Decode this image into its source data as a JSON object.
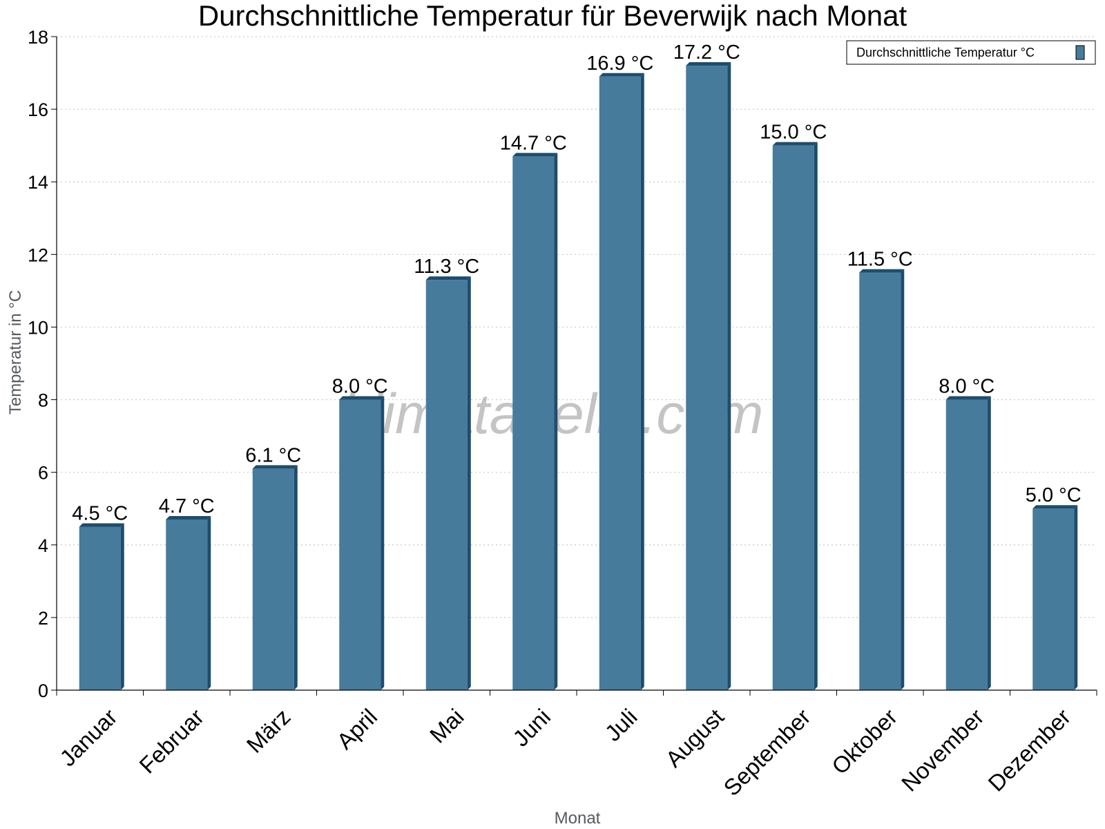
{
  "chart_data": {
    "type": "bar",
    "title": "Durchschnittliche Temperatur für Beverwijk nach Monat",
    "xlabel": "Monat",
    "ylabel": "Temperatur in °C",
    "categories": [
      "Januar",
      "Februar",
      "März",
      "April",
      "Mai",
      "Juni",
      "Juli",
      "August",
      "September",
      "Oktober",
      "November",
      "Dezember"
    ],
    "series": [
      {
        "name": "Durchschnittliche Temperatur °C",
        "values": [
          4.5,
          4.7,
          6.1,
          8.0,
          11.3,
          14.7,
          16.9,
          17.2,
          15.0,
          11.5,
          8.0,
          5.0
        ],
        "labels": [
          "4.5 °C",
          "4.7 °C",
          "6.1 °C",
          "8.0 °C",
          "11.3 °C",
          "14.7 °C",
          "16.9 °C",
          "17.2 °C",
          "15.0 °C",
          "11.5 °C",
          "8.0 °C",
          "5.0 °C"
        ],
        "color": "#467b9c",
        "side_color": "#1d4d6e"
      }
    ],
    "ylim": [
      0,
      18
    ],
    "yticks": [
      0,
      2,
      4,
      6,
      8,
      10,
      12,
      14,
      16,
      18
    ],
    "grid": true,
    "legend_position": "top-right",
    "watermark": "klimatabelle.com"
  }
}
